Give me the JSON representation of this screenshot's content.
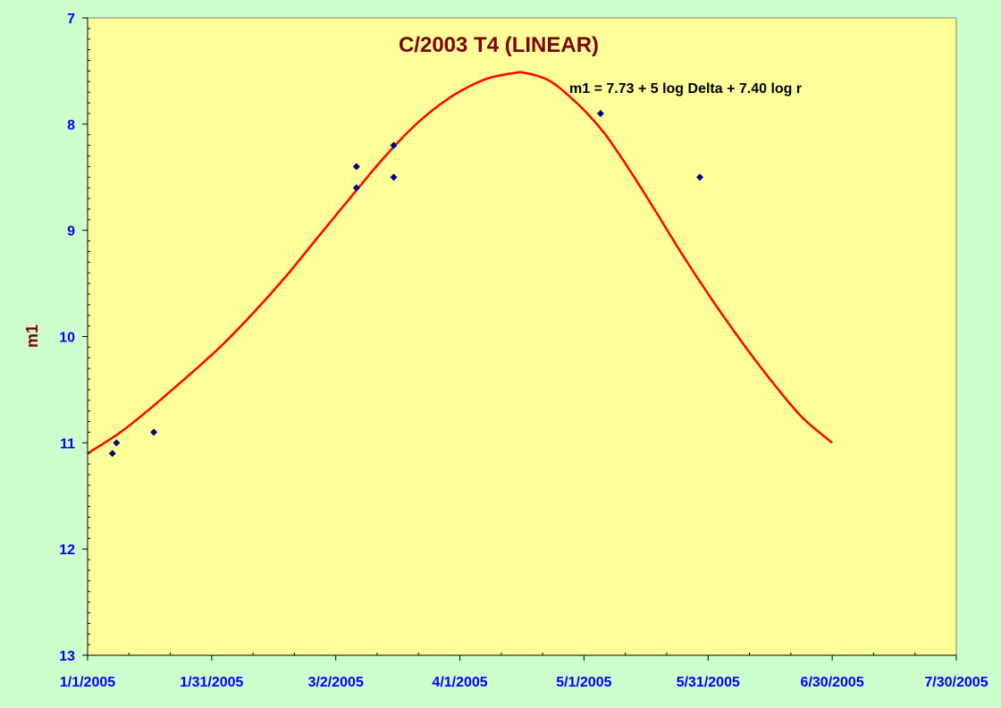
{
  "chart_data": {
    "type": "scatter",
    "title": "C/2003 T4 (LINEAR)",
    "xlabel": "",
    "ylabel": "m1",
    "annotation": "m1 = 7.73 + 5 log Delta + 7.40 log r",
    "x_axis_type": "date",
    "xlim": [
      "2005-01-01",
      "2005-07-30"
    ],
    "x_ticks": [
      "1/1/2005",
      "1/31/2005",
      "3/2/2005",
      "4/1/2005",
      "5/1/2005",
      "5/31/2005",
      "6/30/2005",
      "7/30/2005"
    ],
    "ylim": [
      7,
      13
    ],
    "y_inverted": true,
    "y_ticks": [
      "7",
      "8",
      "9",
      "10",
      "11",
      "12",
      "13"
    ],
    "grid": false,
    "series": [
      {
        "type": "scatter",
        "color": "#000080",
        "marker": "diamond",
        "points": [
          {
            "x": "2005-01-07",
            "y": 11.1
          },
          {
            "x": "2005-01-08",
            "y": 11.0
          },
          {
            "x": "2005-01-17",
            "y": 10.9
          },
          {
            "x": "2005-03-07",
            "y": 8.4
          },
          {
            "x": "2005-03-07",
            "y": 8.6
          },
          {
            "x": "2005-03-16",
            "y": 8.2
          },
          {
            "x": "2005-03-16",
            "y": 8.5
          },
          {
            "x": "2005-05-05",
            "y": 7.9
          },
          {
            "x": "2005-05-29",
            "y": 8.5
          }
        ]
      },
      {
        "type": "line",
        "color": "#ff0000",
        "points": [
          {
            "x": "2005-01-01",
            "y": 11.1
          },
          {
            "x": "2005-01-09",
            "y": 10.9
          },
          {
            "x": "2005-01-17",
            "y": 10.65
          },
          {
            "x": "2005-01-25",
            "y": 10.38
          },
          {
            "x": "2005-02-02",
            "y": 10.1
          },
          {
            "x": "2005-02-10",
            "y": 9.78
          },
          {
            "x": "2005-02-18",
            "y": 9.43
          },
          {
            "x": "2005-02-26",
            "y": 9.05
          },
          {
            "x": "2005-03-06",
            "y": 8.67
          },
          {
            "x": "2005-03-14",
            "y": 8.3
          },
          {
            "x": "2005-03-22",
            "y": 7.98
          },
          {
            "x": "2005-03-30",
            "y": 7.74
          },
          {
            "x": "2005-04-07",
            "y": 7.58
          },
          {
            "x": "2005-04-14",
            "y": 7.52
          },
          {
            "x": "2005-04-17",
            "y": 7.52
          },
          {
            "x": "2005-04-23",
            "y": 7.6
          },
          {
            "x": "2005-04-30",
            "y": 7.83
          },
          {
            "x": "2005-05-06",
            "y": 8.09
          },
          {
            "x": "2005-05-12",
            "y": 8.43
          },
          {
            "x": "2005-05-18",
            "y": 8.8
          },
          {
            "x": "2005-05-24",
            "y": 9.18
          },
          {
            "x": "2005-05-30",
            "y": 9.54
          },
          {
            "x": "2005-06-05",
            "y": 9.88
          },
          {
            "x": "2005-06-11",
            "y": 10.2
          },
          {
            "x": "2005-06-17",
            "y": 10.5
          },
          {
            "x": "2005-06-23",
            "y": 10.77
          },
          {
            "x": "2005-06-30",
            "y": 11.0
          }
        ]
      }
    ]
  }
}
